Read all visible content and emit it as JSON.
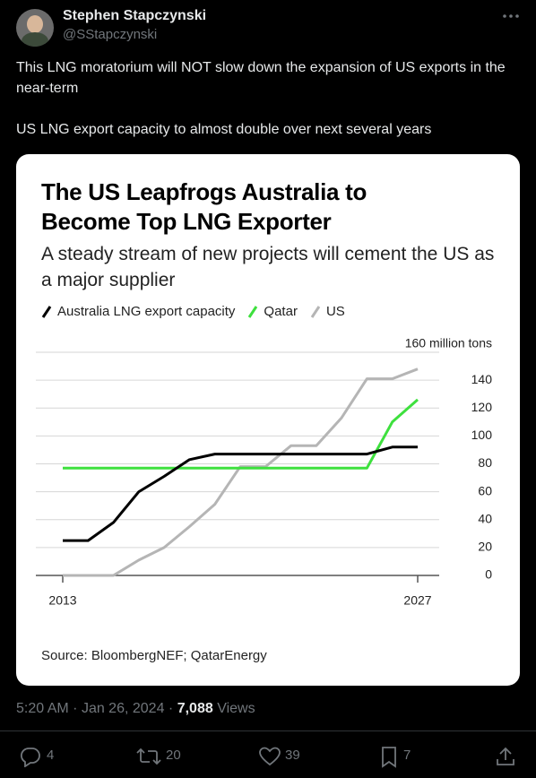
{
  "author": {
    "name": "Stephen Stapczynski",
    "handle": "@SStapczynski"
  },
  "text": [
    "This LNG moratorium will NOT slow down the expansion of US exports in the near-term",
    "US LNG export capacity to almost double over next several years"
  ],
  "meta": {
    "time": "5:20 AM",
    "separator": "·",
    "date": "Jan 26, 2024",
    "views": "7,088",
    "views_label": "Views"
  },
  "stats": {
    "replies": "4",
    "reposts": "20",
    "likes": "39",
    "bookmarks": "7"
  },
  "chart_data": {
    "type": "line",
    "title": "The US Leapfrogs Australia to Become Top LNG Exporter",
    "subtitle": "A steady stream of new projects will cement the US as a major supplier",
    "source": "Source: BloombergNEF; QatarEnergy",
    "x": [
      2013,
      2014,
      2015,
      2016,
      2017,
      2018,
      2019,
      2020,
      2021,
      2022,
      2023,
      2024,
      2025,
      2026,
      2027
    ],
    "xlim": [
      2013,
      2027
    ],
    "xticks": [
      2013,
      2027
    ],
    "ylim": [
      0,
      160
    ],
    "yticks": [
      0,
      20,
      40,
      60,
      80,
      100,
      120,
      140,
      {
        "value": 160,
        "label": "160 million tons"
      }
    ],
    "grid": true,
    "series": [
      {
        "name": "Australia LNG export capacity",
        "color": "#000000",
        "values": [
          25,
          25,
          38,
          60,
          71,
          83,
          87,
          87,
          87,
          87,
          87,
          87,
          87,
          92,
          92
        ]
      },
      {
        "name": "Qatar",
        "color": "#3ee03e",
        "values": [
          77,
          77,
          77,
          77,
          77,
          77,
          77,
          77,
          77,
          77,
          77,
          77,
          77,
          110,
          126
        ]
      },
      {
        "name": "US",
        "color": "#b5b5b5",
        "values": [
          0,
          0,
          0,
          11,
          20,
          35,
          51,
          78,
          78,
          93,
          93,
          113,
          141,
          141,
          148
        ]
      }
    ]
  }
}
